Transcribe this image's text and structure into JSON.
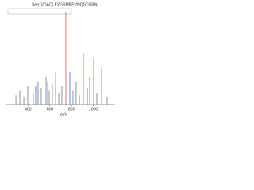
{
  "chart_data": {
    "type": "bar",
    "subtitle": "Seq: VDAQLEYGSMRPVNQGTGRN",
    "x_label": "m/z",
    "xlim": [
      200,
      1200
    ],
    "xticks": [
      400,
      600,
      800,
      1000
    ],
    "ylim": [
      0,
      100
    ],
    "series": [
      {
        "color": "#777777",
        "x": [
          288,
          324,
          361,
          397,
          448,
          492,
          521,
          565,
          594,
          623,
          653,
          682,
          711,
          813,
          842,
          872,
          945,
          1032,
          1127
        ],
        "values": [
          10,
          15,
          8,
          20,
          12,
          25,
          18,
          30,
          15,
          22,
          35,
          12,
          20,
          15,
          25,
          10,
          18,
          12,
          8
        ]
      },
      {
        "color": "#e8504a",
        "x": [
          747,
          908,
          966,
          1003,
          1076
        ],
        "values": [
          100,
          55,
          30,
          50,
          40
        ]
      },
      {
        "color": "#3a6fd8",
        "x": [
          470,
          580,
          784
        ],
        "values": [
          20,
          25,
          35
        ]
      }
    ]
  }
}
